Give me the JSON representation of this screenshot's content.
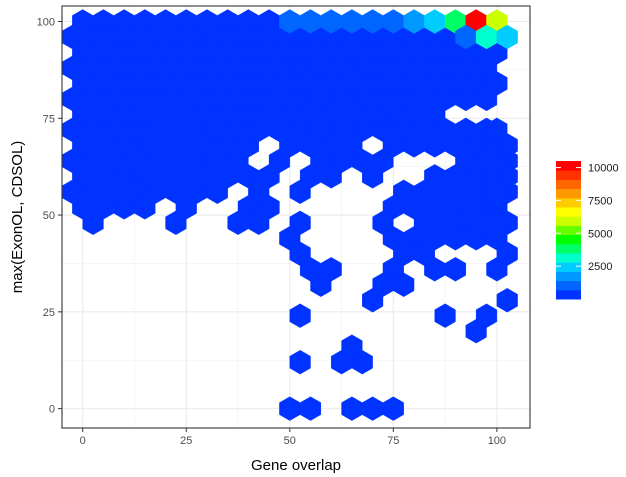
{
  "chart_data": {
    "type": "hexbin",
    "xlabel": "Gene overlap",
    "ylabel": "max(ExonOL, CDSOL)",
    "xlim": [
      -5,
      108
    ],
    "ylim": [
      -5,
      104
    ],
    "x_ticks": [
      0,
      25,
      50,
      75,
      100
    ],
    "y_ticks": [
      0,
      25,
      50,
      75,
      100
    ],
    "grid": true,
    "legend": {
      "position": "right",
      "ticks": [
        2500,
        5000,
        7500,
        10000
      ],
      "min": 0,
      "max": 10500,
      "colors": [
        "#0033ff",
        "#0066ff",
        "#0099ff",
        "#00ccff",
        "#00ffcc",
        "#00ff66",
        "#00ff00",
        "#66ff00",
        "#ccff00",
        "#ffff00",
        "#ffcc00",
        "#ff9900",
        "#ff6600",
        "#ff3300",
        "#ff0000"
      ]
    },
    "hex_bin_width": 5,
    "default_count": 300,
    "cells": [
      {
        "x": 0,
        "y": 100,
        "count": 500
      },
      {
        "x": 5,
        "y": 100,
        "count": 500
      },
      {
        "x": 10,
        "y": 100,
        "count": 500
      },
      {
        "x": 15,
        "y": 100,
        "count": 500
      },
      {
        "x": 20,
        "y": 100,
        "count": 500
      },
      {
        "x": 25,
        "y": 100,
        "count": 500
      },
      {
        "x": 30,
        "y": 100,
        "count": 500
      },
      {
        "x": 35,
        "y": 100,
        "count": 600
      },
      {
        "x": 40,
        "y": 100,
        "count": 600
      },
      {
        "x": 45,
        "y": 100,
        "count": 600
      },
      {
        "x": 50,
        "y": 100,
        "count": 700
      },
      {
        "x": 55,
        "y": 100,
        "count": 700
      },
      {
        "x": 60,
        "y": 100,
        "count": 800
      },
      {
        "x": 65,
        "y": 100,
        "count": 900
      },
      {
        "x": 70,
        "y": 100,
        "count": 1000
      },
      {
        "x": 75,
        "y": 100,
        "count": 1200
      },
      {
        "x": 80,
        "y": 100,
        "count": 1500
      },
      {
        "x": 85,
        "y": 100,
        "count": 2200
      },
      {
        "x": 90,
        "y": 100,
        "count": 3500
      },
      {
        "x": 95,
        "y": 100,
        "count": 10500
      },
      {
        "x": 100,
        "y": 100,
        "count": 5800
      },
      {
        "x": 92.5,
        "y": 96,
        "count": 1200
      },
      {
        "x": 97.5,
        "y": 96,
        "count": 2800
      },
      {
        "x": 102.5,
        "y": 96,
        "count": 2200
      }
    ],
    "ranges": [
      {
        "y": 96,
        "x_from": -2.5,
        "x_to": 87.5
      },
      {
        "y": 92,
        "x_from": 0,
        "x_to": 100
      },
      {
        "y": 88,
        "x_from": -2.5,
        "x_to": 97.5
      },
      {
        "y": 84,
        "x_from": 0,
        "x_to": 100
      },
      {
        "y": 80,
        "x_from": -2.5,
        "x_to": 97.5
      },
      {
        "y": 76,
        "x_from": 0,
        "x_to": 100
      },
      {
        "y": 72,
        "x_from": -2.5,
        "x_to": 97.5
      },
      {
        "y": 68,
        "x_from": 0,
        "x_to": 100
      },
      {
        "y": 64,
        "x_from": -2.5,
        "x_to": 102.5
      },
      {
        "y": 60,
        "x_from": 0,
        "x_to": 100
      },
      {
        "y": 56,
        "x_from": -2.5,
        "x_to": 102.5
      },
      {
        "y": 52,
        "x_from": 0,
        "x_to": 100
      },
      {
        "y": 48,
        "x_from": 2.5,
        "x_to": 102.5
      },
      {
        "y": 44,
        "x_from": 50,
        "x_to": 100
      },
      {
        "y": 40,
        "x_from": 52.5,
        "x_to": 102.5
      }
    ],
    "range_excludes": [
      {
        "x": 92.5,
        "y": 96
      },
      {
        "x": 97.5,
        "y": 96
      },
      {
        "x": 102.5,
        "y": 96
      },
      {
        "x": 90,
        "y": 76
      },
      {
        "x": 95,
        "y": 76
      },
      {
        "x": 100,
        "y": 76
      },
      {
        "x": 45,
        "y": 72
      },
      {
        "x": 45,
        "y": 68
      },
      {
        "x": 70,
        "y": 68
      },
      {
        "x": 42.5,
        "y": 64
      },
      {
        "x": 52.5,
        "y": 64
      },
      {
        "x": 77.5,
        "y": 64
      },
      {
        "x": 82.5,
        "y": 64
      },
      {
        "x": 87.5,
        "y": 64
      },
      {
        "x": 50,
        "y": 60
      },
      {
        "x": 65,
        "y": 60
      },
      {
        "x": 75,
        "y": 60
      },
      {
        "x": 80,
        "y": 60
      },
      {
        "x": 37.5,
        "y": 56
      },
      {
        "x": 47.5,
        "y": 56
      },
      {
        "x": 57.5,
        "y": 56
      },
      {
        "x": 62.5,
        "y": 56
      },
      {
        "x": 67.5,
        "y": 56
      },
      {
        "x": 72.5,
        "y": 56
      },
      {
        "x": 20,
        "y": 52
      },
      {
        "x": 30,
        "y": 52
      },
      {
        "x": 35,
        "y": 52
      },
      {
        "x": 50,
        "y": 52
      },
      {
        "x": 55,
        "y": 52
      },
      {
        "x": 60,
        "y": 52
      },
      {
        "x": 65,
        "y": 52
      },
      {
        "x": 70,
        "y": 52
      },
      {
        "x": 7.5,
        "y": 48
      },
      {
        "x": 12.5,
        "y": 48
      },
      {
        "x": 17.5,
        "y": 48
      },
      {
        "x": 27.5,
        "y": 48
      },
      {
        "x": 32.5,
        "y": 48
      },
      {
        "x": 47.5,
        "y": 48
      },
      {
        "x": 57.5,
        "y": 48
      },
      {
        "x": 62.5,
        "y": 48
      },
      {
        "x": 67.5,
        "y": 48
      },
      {
        "x": 77.5,
        "y": 48
      },
      {
        "x": 55,
        "y": 44
      },
      {
        "x": 60,
        "y": 44
      },
      {
        "x": 65,
        "y": 44
      },
      {
        "x": 70,
        "y": 44
      },
      {
        "x": 57.5,
        "y": 40
      },
      {
        "x": 62.5,
        "y": 40
      },
      {
        "x": 67.5,
        "y": 40
      },
      {
        "x": 72.5,
        "y": 40
      },
      {
        "x": 87.5,
        "y": 40
      },
      {
        "x": 92.5,
        "y": 40
      },
      {
        "x": 97.5,
        "y": 40
      }
    ],
    "scattered": [
      {
        "x": 100,
        "y": 72
      },
      {
        "x": 102.5,
        "y": 68
      },
      {
        "x": 102.5,
        "y": 60
      },
      {
        "x": 100,
        "y": 56
      },
      {
        "x": 55,
        "y": 36
      },
      {
        "x": 60,
        "y": 36
      },
      {
        "x": 75,
        "y": 36
      },
      {
        "x": 85,
        "y": 36
      },
      {
        "x": 90,
        "y": 36
      },
      {
        "x": 100,
        "y": 36
      },
      {
        "x": 57.5,
        "y": 32
      },
      {
        "x": 72.5,
        "y": 32
      },
      {
        "x": 77.5,
        "y": 32
      },
      {
        "x": 70,
        "y": 28
      },
      {
        "x": 102.5,
        "y": 28
      },
      {
        "x": 52.5,
        "y": 24
      },
      {
        "x": 87.5,
        "y": 24
      },
      {
        "x": 97.5,
        "y": 24
      },
      {
        "x": 95,
        "y": 20
      },
      {
        "x": 65,
        "y": 16
      },
      {
        "x": 52.5,
        "y": 12
      },
      {
        "x": 62.5,
        "y": 12
      },
      {
        "x": 67.5,
        "y": 12
      },
      {
        "x": 50,
        "y": 0
      },
      {
        "x": 55,
        "y": 0
      },
      {
        "x": 65,
        "y": 0
      },
      {
        "x": 70,
        "y": 0
      },
      {
        "x": 75,
        "y": 0
      }
    ]
  }
}
